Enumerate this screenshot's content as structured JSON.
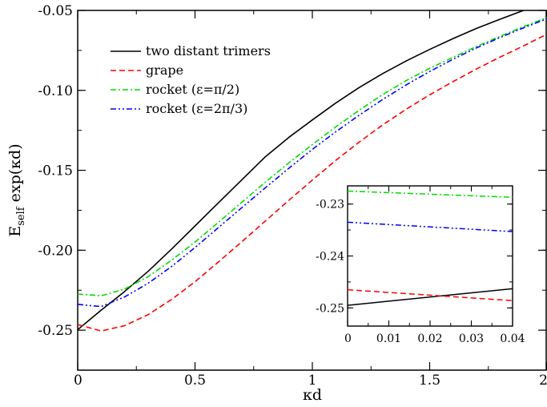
{
  "chart_data": [
    {
      "type": "line",
      "xlabel": "κd",
      "ylabel": "E",
      "ylabel_sub": "self",
      "ylabel_tail": " exp(κd)",
      "xlim": [
        0,
        2
      ],
      "ylim": [
        -0.275,
        -0.05
      ],
      "xticks": [
        0,
        0.5,
        1,
        1.5,
        2
      ],
      "xtick_labels": [
        "0",
        "0.5",
        "1",
        "1.5",
        "2"
      ],
      "yticks": [
        -0.25,
        -0.2,
        -0.15,
        -0.1,
        -0.05
      ],
      "ytick_labels": [
        "-0.25",
        "-0.20",
        "-0.15",
        "-0.10",
        "-0.05"
      ],
      "legend_position": "top-left",
      "series": [
        {
          "name": "two distant trimers",
          "color": "#000000",
          "dash": "solid",
          "x": [
            0,
            0.1,
            0.2,
            0.3,
            0.4,
            0.5,
            0.6,
            0.7,
            0.8,
            0.9,
            1.0,
            1.1,
            1.2,
            1.3,
            1.4,
            1.5,
            1.6,
            1.7,
            1.8,
            1.9
          ],
          "y": [
            -0.2497,
            -0.2375,
            -0.2258,
            -0.2132,
            -0.1993,
            -0.1848,
            -0.1703,
            -0.1559,
            -0.1415,
            -0.1294,
            -0.1185,
            -0.1079,
            -0.0982,
            -0.0895,
            -0.0816,
            -0.0744,
            -0.0676,
            -0.0612,
            -0.0555,
            -0.05
          ]
        },
        {
          "name": "grape",
          "color": "#ff0000",
          "dash": "dashed",
          "x": [
            0,
            0.05,
            0.1,
            0.2,
            0.3,
            0.4,
            0.5,
            0.6,
            0.7,
            0.8,
            0.9,
            1.0,
            1.1,
            1.2,
            1.3,
            1.4,
            1.5,
            1.6,
            1.7,
            1.8,
            1.9,
            2.0
          ],
          "y": [
            -0.2465,
            -0.2485,
            -0.2505,
            -0.2472,
            -0.2403,
            -0.2308,
            -0.2197,
            -0.2073,
            -0.1946,
            -0.1817,
            -0.1688,
            -0.1561,
            -0.1438,
            -0.1323,
            -0.1216,
            -0.1118,
            -0.1028,
            -0.0945,
            -0.0866,
            -0.0792,
            -0.0722,
            -0.0648
          ]
        },
        {
          "name": "rocket (ε=π/2)",
          "color": "#00dd00",
          "dash": "dashdot",
          "x": [
            0,
            0.05,
            0.1,
            0.2,
            0.3,
            0.4,
            0.5,
            0.6,
            0.7,
            0.8,
            0.9,
            1.0,
            1.1,
            1.2,
            1.3,
            1.4,
            1.5,
            1.6,
            1.7,
            1.8,
            1.9,
            2.0
          ],
          "y": [
            -0.2274,
            -0.2279,
            -0.2285,
            -0.2243,
            -0.2165,
            -0.2063,
            -0.1949,
            -0.1825,
            -0.1699,
            -0.1574,
            -0.1453,
            -0.1339,
            -0.1228,
            -0.1124,
            -0.1026,
            -0.0939,
            -0.0862,
            -0.0793,
            -0.0725,
            -0.0662,
            -0.0601,
            -0.0545
          ]
        },
        {
          "name": "rocket (ε=2π/3)",
          "color": "#0000ff",
          "dash": "dashdotdot",
          "x": [
            0,
            0.05,
            0.1,
            0.2,
            0.3,
            0.4,
            0.5,
            0.6,
            0.7,
            0.8,
            0.9,
            1.0,
            1.1,
            1.2,
            1.3,
            1.4,
            1.5,
            1.6,
            1.7,
            1.8,
            1.9,
            2.0
          ],
          "y": [
            -0.2338,
            -0.2346,
            -0.2352,
            -0.2292,
            -0.2207,
            -0.2102,
            -0.1983,
            -0.1858,
            -0.1733,
            -0.1609,
            -0.1487,
            -0.1369,
            -0.1259,
            -0.1155,
            -0.1057,
            -0.0966,
            -0.0882,
            -0.0805,
            -0.0734,
            -0.0669,
            -0.0609,
            -0.0552
          ]
        }
      ]
    },
    {
      "type": "line",
      "role": "inset",
      "xlim": [
        0,
        0.04
      ],
      "ylim": [
        -0.2535,
        -0.2265
      ],
      "xticks": [
        0,
        0.01,
        0.02,
        0.03,
        0.04
      ],
      "xtick_labels": [
        "0",
        "0.01",
        "0.02",
        "0.03",
        "0.04"
      ],
      "yticks": [
        -0.25,
        -0.24,
        -0.23
      ],
      "ytick_labels": [
        "-0.25",
        "-0.24",
        "-0.23"
      ],
      "series": [
        {
          "color": "#000000",
          "dash": "solid",
          "x": [
            0,
            0.04
          ],
          "y": [
            -0.2495,
            -0.2463
          ]
        },
        {
          "color": "#ff0000",
          "dash": "dashed",
          "x": [
            0,
            0.04
          ],
          "y": [
            -0.2465,
            -0.2486
          ]
        },
        {
          "color": "#00dd00",
          "dash": "dashdot",
          "x": [
            0,
            0.04
          ],
          "y": [
            -0.2275,
            -0.2287
          ]
        },
        {
          "color": "#0000ff",
          "dash": "dashdotdot",
          "x": [
            0,
            0.04
          ],
          "y": [
            -0.2335,
            -0.2353
          ]
        }
      ]
    }
  ]
}
